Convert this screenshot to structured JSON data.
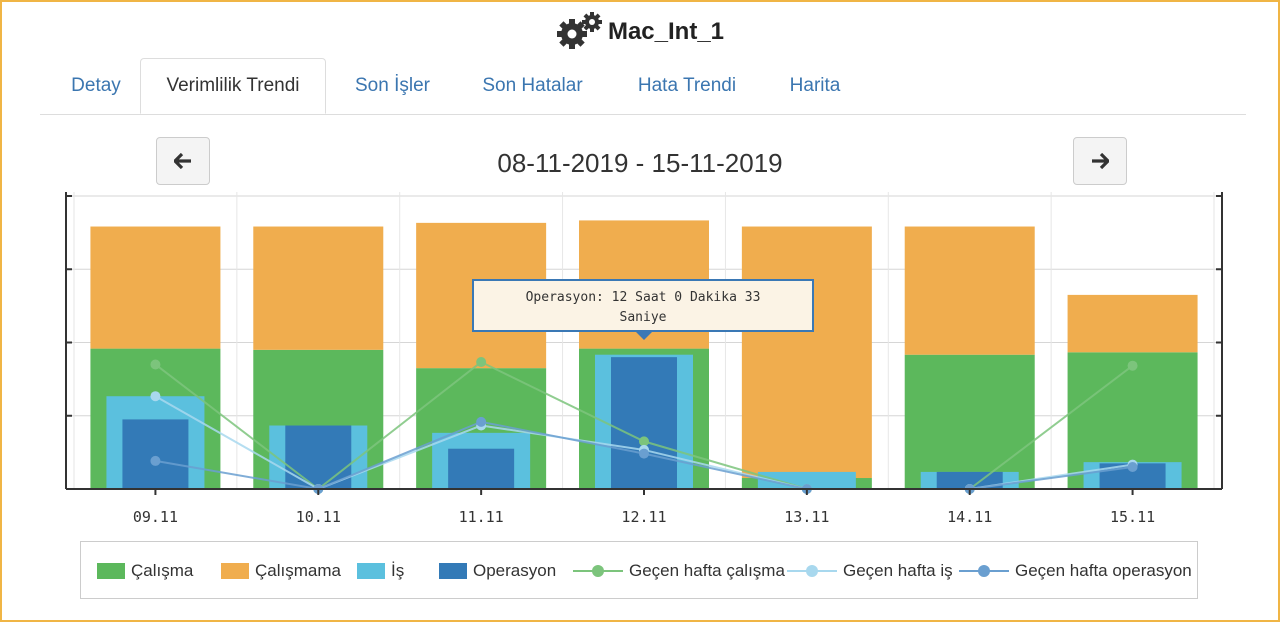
{
  "window": {
    "title": "Mac_Int_1",
    "border_color": "#f0b545"
  },
  "tabs": [
    {
      "label": "Detay",
      "active": false
    },
    {
      "label": "Verimlilik Trendi",
      "active": true
    },
    {
      "label": "Son İşler",
      "active": false
    },
    {
      "label": "Son Hatalar",
      "active": false
    },
    {
      "label": "Hata Trendi",
      "active": false
    },
    {
      "label": "Harita",
      "active": false
    }
  ],
  "navigation": {
    "prev_icon": "arrow-left-icon",
    "next_icon": "arrow-right-icon",
    "date_range": "08-11-2019 - 15-11-2019"
  },
  "tooltip": {
    "line1": "Operasyon: 12 Saat 0 Dakika 33",
    "line2": "Saniye"
  },
  "legend": [
    {
      "label": "Çalışma",
      "color": "#5cb85c",
      "kind": "box"
    },
    {
      "label": "Çalışmama",
      "color": "#f0ad4e",
      "kind": "box"
    },
    {
      "label": "İş",
      "color": "#5bc0de",
      "kind": "box"
    },
    {
      "label": "Operasyon",
      "color": "#337ab7",
      "kind": "box"
    },
    {
      "label": "Geçen hafta çalışma",
      "color": "#7cc47c",
      "kind": "line"
    },
    {
      "label": "Geçen hafta iş",
      "color": "#a8d8ee",
      "kind": "line"
    },
    {
      "label": "Geçen hafta operasyon",
      "color": "#6a9fd0",
      "kind": "line"
    }
  ],
  "chart_data": {
    "type": "bar",
    "categories": [
      "09.11",
      "10.11",
      "11.11",
      "12.11",
      "13.11",
      "14.11",
      "15.11"
    ],
    "ylim": [
      0,
      24
    ],
    "grid": true,
    "legend_position": "bottom",
    "series": [
      {
        "name": "Çalışma",
        "values": [
          11.5,
          11.4,
          9.9,
          11.5,
          0.9,
          11.0,
          11.2
        ]
      },
      {
        "name": "Çalışmama",
        "values": [
          10.0,
          10.1,
          11.9,
          10.5,
          20.6,
          10.5,
          4.7
        ]
      },
      {
        "name": "İş",
        "values": [
          7.6,
          5.2,
          4.6,
          11.0,
          1.4,
          1.4,
          2.2
        ]
      },
      {
        "name": "Operasyon",
        "values": [
          5.7,
          5.2,
          3.3,
          10.8,
          0.0,
          1.4,
          2.1
        ]
      },
      {
        "name": "Geçen hafta çalışma",
        "values": [
          10.2,
          0.0,
          10.4,
          3.9,
          0.0,
          0.0,
          10.1
        ]
      },
      {
        "name": "Geçen hafta iş",
        "values": [
          7.6,
          0.0,
          5.2,
          3.2,
          0.0,
          0.0,
          2.0
        ]
      },
      {
        "name": "Geçen hafta operasyon",
        "values": [
          2.3,
          0.0,
          5.5,
          2.9,
          0.0,
          0.0,
          1.8
        ]
      }
    ]
  }
}
